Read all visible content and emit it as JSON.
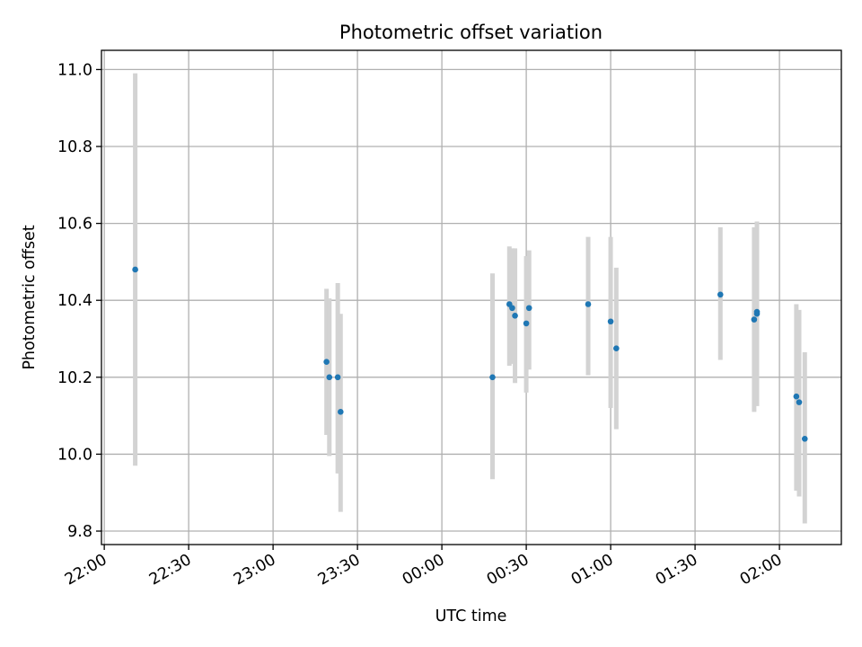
{
  "chart_data": {
    "type": "scatter",
    "title": "Photometric offset variation",
    "xlabel": "UTC time",
    "ylabel": "Photometric offset",
    "x_unit": "UTC time (HH:MM), spans midnight",
    "xlim": [
      "21:59",
      "02:22"
    ],
    "ylim": [
      9.765,
      11.05
    ],
    "x_ticks": [
      "22:00",
      "22:30",
      "23:00",
      "23:30",
      "00:00",
      "00:30",
      "01:00",
      "01:30",
      "02:00"
    ],
    "y_ticks": [
      "9.8",
      "10.0",
      "10.2",
      "10.4",
      "10.6",
      "10.8",
      "11.0"
    ],
    "grid": true,
    "legend": "none",
    "colors": {
      "marker": "#1f77b4",
      "errorbar": "#d3d3d3",
      "grid": "#b0b0b0"
    },
    "points": [
      {
        "x": "22:11",
        "y": 10.48,
        "ylo": 9.97,
        "yhi": 10.99
      },
      {
        "x": "23:19",
        "y": 10.24,
        "ylo": 10.05,
        "yhi": 10.43
      },
      {
        "x": "23:20",
        "y": 10.2,
        "ylo": 9.995,
        "yhi": 10.405
      },
      {
        "x": "23:23",
        "y": 10.2,
        "ylo": 9.95,
        "yhi": 10.445
      },
      {
        "x": "23:24",
        "y": 10.11,
        "ylo": 9.85,
        "yhi": 10.365
      },
      {
        "x": "00:18",
        "y": 10.2,
        "ylo": 9.935,
        "yhi": 10.47
      },
      {
        "x": "00:24",
        "y": 10.39,
        "ylo": 10.23,
        "yhi": 10.54
      },
      {
        "x": "00:25",
        "y": 10.38,
        "ylo": 10.235,
        "yhi": 10.535
      },
      {
        "x": "00:26",
        "y": 10.36,
        "ylo": 10.185,
        "yhi": 10.535
      },
      {
        "x": "00:30",
        "y": 10.34,
        "ylo": 10.16,
        "yhi": 10.515
      },
      {
        "x": "00:31",
        "y": 10.38,
        "ylo": 10.22,
        "yhi": 10.53
      },
      {
        "x": "00:52",
        "y": 10.39,
        "ylo": 10.205,
        "yhi": 10.565
      },
      {
        "x": "01:00",
        "y": 10.345,
        "ylo": 10.12,
        "yhi": 10.565
      },
      {
        "x": "01:02",
        "y": 10.275,
        "ylo": 10.065,
        "yhi": 10.485
      },
      {
        "x": "01:39",
        "y": 10.415,
        "ylo": 10.245,
        "yhi": 10.59
      },
      {
        "x": "01:51",
        "y": 10.35,
        "ylo": 10.11,
        "yhi": 10.59
      },
      {
        "x": "01:52",
        "y": 10.365,
        "ylo": 10.125,
        "yhi": 10.605
      },
      {
        "x": "01:52",
        "y": 10.37,
        "ylo": 10.135,
        "yhi": 10.605
      },
      {
        "x": "02:06",
        "y": 10.15,
        "ylo": 9.905,
        "yhi": 10.39
      },
      {
        "x": "02:07",
        "y": 10.135,
        "ylo": 9.89,
        "yhi": 10.375
      },
      {
        "x": "02:09",
        "y": 10.04,
        "ylo": 9.82,
        "yhi": 10.265
      }
    ]
  }
}
